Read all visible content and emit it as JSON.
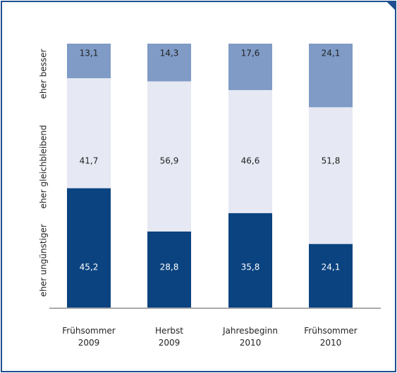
{
  "chart_data": {
    "type": "stacked_bar",
    "categories": [
      "Frühsommer\n2009",
      "Herbst\n2009",
      "Jahresbeginn\n2010",
      "Frühsommer\n2010"
    ],
    "series": [
      {
        "name": "eher ungünstiger",
        "color": "#0a4380",
        "values": [
          45.2,
          28.8,
          35.8,
          24.1
        ],
        "value_labels": [
          "45,2",
          "28,8",
          "35,8",
          "24,1"
        ]
      },
      {
        "name": "eher gleichbleibend",
        "color": "#e6e8f3",
        "values": [
          41.7,
          56.9,
          46.6,
          51.8
        ],
        "value_labels": [
          "41,7",
          "56,9",
          "46,6",
          "51,8"
        ]
      },
      {
        "name": "eher besser",
        "color": "#7f9bc6",
        "values": [
          13.1,
          14.3,
          17.6,
          24.1
        ],
        "value_labels": [
          "13,1",
          "14,3",
          "17,6",
          "24,1"
        ]
      }
    ]
  }
}
